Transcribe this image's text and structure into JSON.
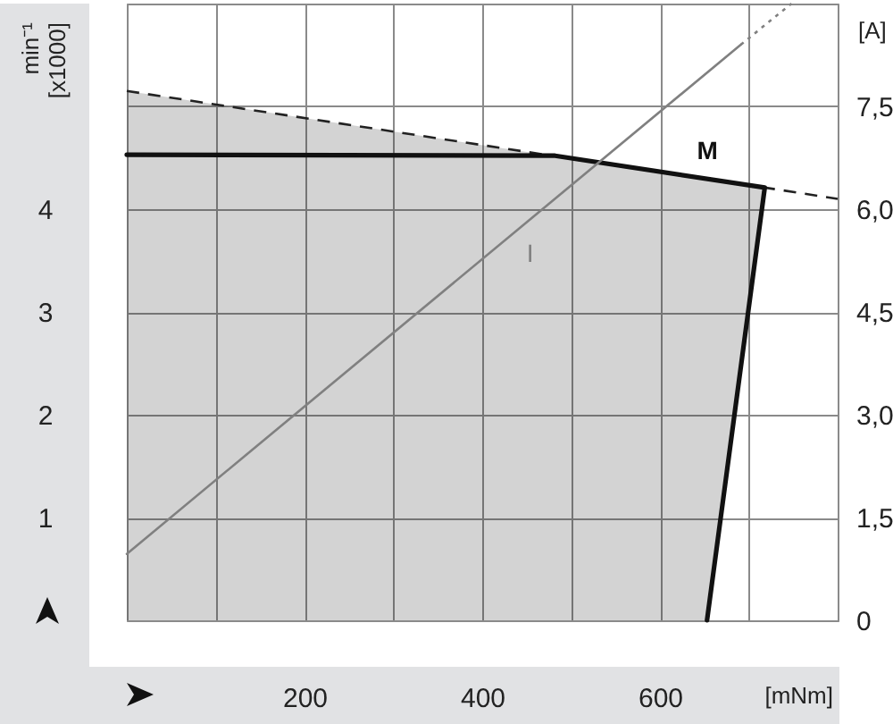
{
  "chart_data": {
    "type": "line",
    "xlabel": "[mNm]",
    "ylabel": "min⁻¹ [x1000]",
    "y2label": "[A]",
    "xlim": [
      0,
      800
    ],
    "xticks": [
      {
        "value": 0,
        "label": null
      },
      {
        "value": 100,
        "label": null
      },
      200,
      {
        "value": 300,
        "label": null
      },
      400,
      {
        "value": 500,
        "label": null
      },
      600,
      {
        "value": 700,
        "label": null
      },
      {
        "value": 800,
        "label": null
      }
    ],
    "ylim": [
      0,
      6
    ],
    "yticks": [
      {
        "value": 0,
        "label": null
      },
      1,
      2,
      3,
      4,
      {
        "value": 5,
        "label": null
      },
      {
        "value": 6,
        "label": null
      }
    ],
    "y2lim": [
      0,
      9
    ],
    "y2ticks": [
      0,
      {
        "value": 1.5,
        "label": "1,5"
      },
      {
        "value": 3,
        "label": "3,0"
      },
      {
        "value": 4.5,
        "label": "4,5"
      },
      {
        "value": 6,
        "label": "6,0"
      },
      {
        "value": 7.5,
        "label": "7,5"
      },
      {
        "value": 9,
        "label": null
      }
    ],
    "grid": true,
    "series": [
      {
        "color": "#222222",
        "line_style": "dashed",
        "x": [
          0,
          653,
          718,
          800
        ],
        "values": [
          5.15,
          4.29,
          4.21,
          4.1
        ],
        "lower": [
          0,
          0,
          4.21,
          null
        ],
        "upper": [
          5.15,
          4.29,
          4.21,
          null
        ]
      },
      {
        "name": "M",
        "color": "#111111",
        "x": [
          0,
          482,
          718,
          653
        ],
        "values": [
          4.53,
          4.52,
          4.21,
          0
        ]
      },
      {
        "name": "I",
        "color": "#808080",
        "axis": "y2",
        "x": [
          0,
          691
        ],
        "values": [
          0.97,
          8.4
        ]
      },
      {
        "color": "#808080",
        "axis": "y2",
        "line_style": "dotted",
        "x": [
          691,
          748
        ],
        "values": [
          8.4,
          9.0
        ]
      }
    ]
  }
}
